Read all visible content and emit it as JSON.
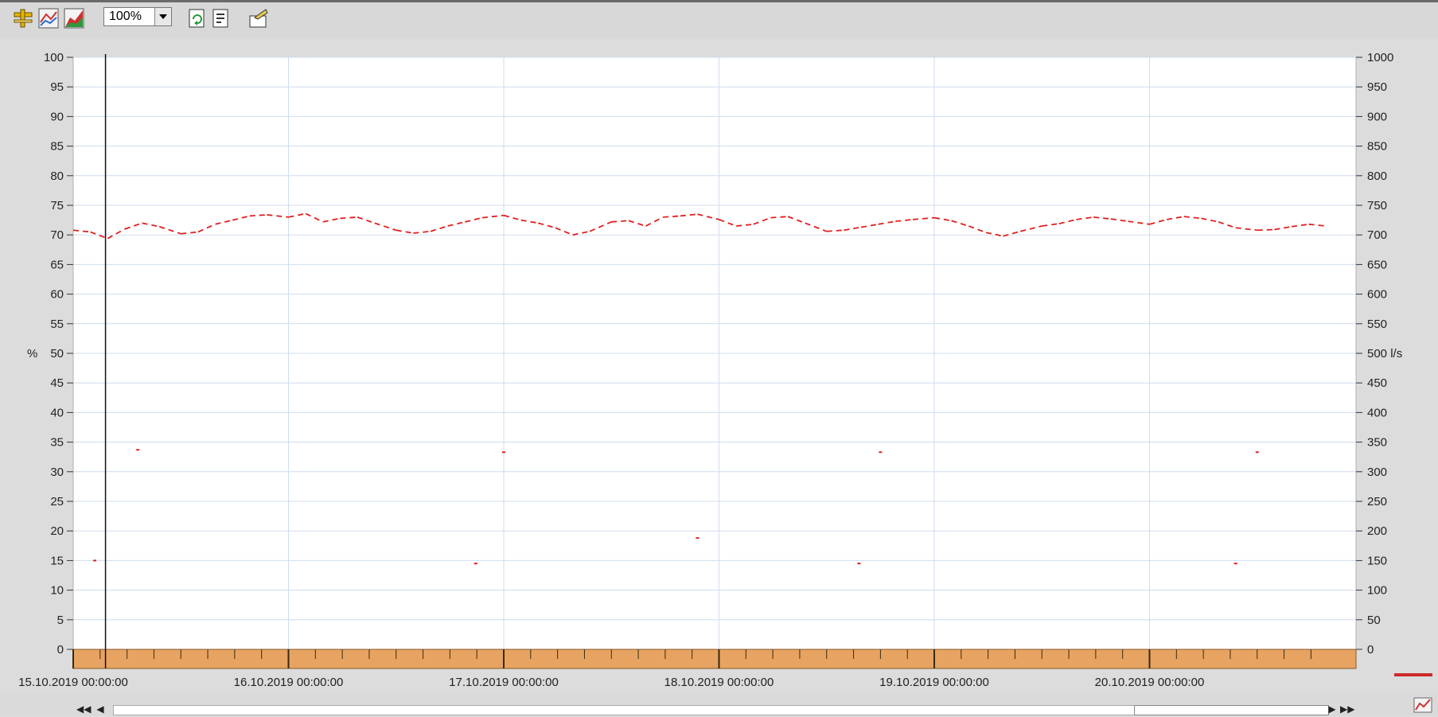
{
  "toolbar": {
    "zoom_value": "100%",
    "buttons": [
      {
        "name": "ruler-icon",
        "color": "#c8a000"
      },
      {
        "name": "line-chart-icon",
        "color": "#2a6fd0"
      },
      {
        "name": "area-chart-icon",
        "color": "#d03030"
      },
      {
        "name": "refresh-document-icon"
      },
      {
        "name": "properties-document-icon"
      },
      {
        "name": "export-icon"
      }
    ]
  },
  "colors": {
    "series": "#e02020",
    "axis_band": "#e7a361",
    "grid": "#cfdcef",
    "plot_bg": "#ffffff"
  },
  "chart_data": {
    "type": "line",
    "left_axis": {
      "label": "%",
      "min": 0,
      "max": 100,
      "step": 5
    },
    "right_axis": {
      "unit_label": "l/s",
      "unit_at": 500,
      "min": 0,
      "max": 1000,
      "step": 50
    },
    "x_labels": [
      "15.10.2019 00:00:00",
      "16.10.2019 00:00:00",
      "17.10.2019 00:00:00",
      "18.10.2019 00:00:00",
      "19.10.2019 00:00:00",
      "20.10.2019 00:00:00"
    ],
    "x_range_days": [
      0,
      5.85
    ],
    "cursor_day": 0.15,
    "grid": true,
    "series": [
      {
        "style": "dashed",
        "x_days": [
          0,
          0.08,
          0.16,
          0.24,
          0.32,
          0.4,
          0.5,
          0.58,
          0.66,
          0.74,
          0.82,
          0.9,
          1.0,
          1.08,
          1.16,
          1.24,
          1.32,
          1.4,
          1.5,
          1.58,
          1.66,
          1.74,
          1.82,
          1.9,
          2.0,
          2.08,
          2.16,
          2.24,
          2.32,
          2.4,
          2.5,
          2.58,
          2.66,
          2.74,
          2.82,
          2.9,
          3.0,
          3.08,
          3.16,
          3.24,
          3.32,
          3.4,
          3.5,
          3.58,
          3.66,
          3.74,
          3.82,
          3.9,
          4.0,
          4.08,
          4.16,
          4.24,
          4.32,
          4.4,
          4.5,
          4.58,
          4.66,
          4.74,
          4.82,
          4.9,
          5.0,
          5.08,
          5.16,
          5.24,
          5.32,
          5.4,
          5.5,
          5.58,
          5.66,
          5.74,
          5.82
        ],
        "y_pct": [
          70.8,
          70.5,
          69.4,
          71.0,
          72.0,
          71.4,
          70.2,
          70.5,
          71.8,
          72.5,
          73.2,
          73.4,
          73.0,
          73.6,
          72.2,
          72.8,
          73.0,
          72.0,
          70.8,
          70.3,
          70.6,
          71.5,
          72.2,
          72.9,
          73.3,
          72.5,
          72.0,
          71.2,
          70.0,
          70.6,
          72.2,
          72.4,
          71.5,
          73.0,
          73.2,
          73.5,
          72.6,
          71.5,
          71.8,
          72.9,
          73.1,
          72.0,
          70.6,
          70.8,
          71.3,
          71.8,
          72.3,
          72.6,
          72.9,
          72.4,
          71.5,
          70.4,
          69.8,
          70.6,
          71.5,
          71.9,
          72.6,
          73.0,
          72.7,
          72.3,
          71.8,
          72.6,
          73.1,
          72.8,
          72.2,
          71.2,
          70.8,
          70.9,
          71.4,
          71.8,
          71.5
        ],
        "dots": [
          [
            0.3,
            33.7
          ],
          [
            2.0,
            33.3
          ],
          [
            3.75,
            33.3
          ],
          [
            5.5,
            33.3
          ],
          [
            1.87,
            14.5
          ],
          [
            3.65,
            14.5
          ],
          [
            5.4,
            14.5
          ],
          [
            2.9,
            18.8
          ],
          [
            0.1,
            15.0
          ]
        ]
      }
    ]
  }
}
